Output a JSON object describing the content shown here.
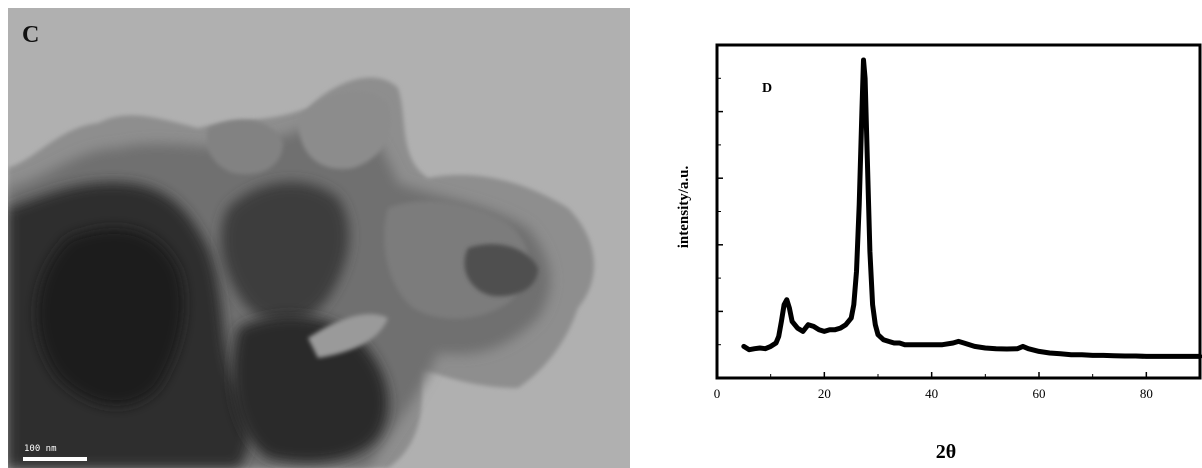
{
  "panel_c": {
    "letter": "C",
    "scale_bar_label": "100 nm"
  },
  "chart_data": {
    "type": "line",
    "panel_letter": "D",
    "title": "",
    "xlabel": "2θ",
    "ylabel": "intensity/a.u.",
    "xlim": [
      0,
      90
    ],
    "ylim": [
      0,
      100
    ],
    "xticks": [
      0,
      20,
      40,
      60,
      80
    ],
    "y_tick_labels_shown": false,
    "grid": false,
    "legend": "none",
    "line_color": "#000000",
    "series": [
      {
        "x": [
          5,
          6,
          7,
          8,
          9,
          10,
          11,
          11.5,
          12,
          12.5,
          13,
          13.5,
          14,
          15,
          16,
          17,
          18,
          19,
          20,
          21,
          22,
          23,
          24,
          25,
          25.5,
          26,
          26.5,
          27,
          27.3,
          27.6,
          28,
          28.5,
          29,
          29.5,
          30,
          31,
          32,
          33,
          34,
          35,
          36,
          38,
          40,
          42,
          44,
          45,
          46,
          48,
          50,
          52,
          54,
          56,
          57,
          58,
          60,
          62,
          64,
          66,
          68,
          70,
          72,
          74,
          76,
          78,
          80,
          82,
          84,
          86,
          88,
          90
        ],
        "y": [
          9.5,
          8.5,
          8.8,
          9.0,
          8.8,
          9.5,
          10.5,
          12.5,
          17.0,
          22.0,
          23.5,
          21.0,
          17.0,
          15.0,
          14.0,
          16.0,
          15.5,
          14.5,
          14.0,
          14.5,
          14.5,
          15.0,
          16.0,
          18.0,
          22.0,
          32.0,
          52.0,
          80.0,
          95.5,
          90.0,
          66.0,
          38.0,
          22.0,
          16.0,
          13.0,
          11.5,
          11.0,
          10.5,
          10.5,
          10.0,
          10.0,
          10.0,
          10.0,
          10.0,
          10.5,
          11.0,
          10.5,
          9.5,
          9.0,
          8.8,
          8.7,
          8.8,
          9.5,
          8.8,
          8.0,
          7.5,
          7.3,
          7.0,
          7.0,
          6.8,
          6.8,
          6.7,
          6.6,
          6.6,
          6.5,
          6.5,
          6.5,
          6.5,
          6.5,
          6.5
        ]
      }
    ]
  }
}
